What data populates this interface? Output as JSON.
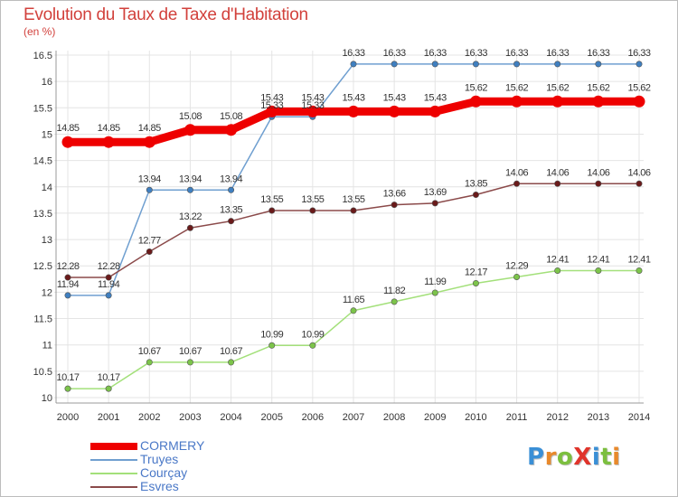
{
  "header": {
    "title": "Evolution du Taux de Taxe d'Habitation",
    "subtitle": "(en %)"
  },
  "logo": {
    "text": "ProXiti",
    "letters": [
      "P",
      "r",
      "o",
      "X",
      "i",
      "t",
      "i"
    ],
    "colors": [
      "#3a8fd6",
      "#e8892b",
      "#7cbf3f",
      "#e0342b",
      "#3a8fd6",
      "#7cbf3f",
      "#e8892b"
    ]
  },
  "chart_data": {
    "type": "line",
    "title": "Evolution du Taux de Taxe d'Habitation",
    "subtitle": "(en %)",
    "xlabel": "",
    "ylabel": "",
    "x": [
      "2000",
      "2001",
      "2002",
      "2003",
      "2004",
      "2005",
      "2006",
      "2007",
      "2008",
      "2009",
      "2010",
      "2011",
      "2012",
      "2013",
      "2014"
    ],
    "ylim": [
      10,
      16.5
    ],
    "yticks": [
      "10",
      "10.5",
      "11",
      "11.5",
      "12",
      "12.5",
      "13",
      "13.5",
      "14",
      "14.5",
      "15",
      "15.5",
      "16",
      "16.5"
    ],
    "grid": true,
    "legend_position": "bottom-left",
    "series": [
      {
        "name": "CORMERY",
        "color": "#ee0000",
        "thick": true,
        "values": [
          14.85,
          14.85,
          14.85,
          15.08,
          15.08,
          15.43,
          15.43,
          15.43,
          15.43,
          15.43,
          15.62,
          15.62,
          15.62,
          15.62,
          15.62
        ],
        "labels": [
          "14.85",
          "14.85",
          "14.85",
          "15.08",
          "15.08",
          "15.43",
          "15.43",
          "15.43",
          "15.43",
          "15.43",
          "15.62",
          "15.62",
          "15.62",
          "15.62",
          "15.62"
        ]
      },
      {
        "name": "Truyes",
        "color": "#6f9fd0",
        "marker": "#3f7fc0",
        "values": [
          11.94,
          11.94,
          13.94,
          13.94,
          13.94,
          15.33,
          15.33,
          16.33,
          16.33,
          16.33,
          16.33,
          16.33,
          16.33,
          16.33,
          16.33
        ],
        "labels": [
          "11.94",
          "11.94",
          "13.94",
          "13.94",
          "13.94",
          "15.33",
          "15.33",
          "16.33",
          "16.33",
          "16.33",
          "16.33",
          "16.33",
          "16.33",
          "16.33",
          "16.33"
        ]
      },
      {
        "name": "Courçay",
        "color": "#a3e07a",
        "marker": "#7cc44a",
        "values": [
          10.17,
          10.17,
          10.67,
          10.67,
          10.67,
          10.99,
          10.99,
          11.65,
          11.82,
          11.99,
          12.17,
          12.29,
          12.41,
          12.41,
          12.41
        ],
        "labels": [
          "10.17",
          "10.17",
          "10.67",
          "10.67",
          "10.67",
          "10.99",
          "10.99",
          "11.65",
          "11.82",
          "11.99",
          "12.17",
          "12.29",
          "12.41",
          "12.41",
          "12.41"
        ]
      },
      {
        "name": "Esvres",
        "color": "#8b4a4a",
        "marker": "#6a1a1a",
        "values": [
          12.28,
          12.28,
          12.77,
          13.22,
          13.35,
          13.55,
          13.55,
          13.55,
          13.66,
          13.69,
          13.85,
          14.06,
          14.06,
          14.06,
          14.06
        ],
        "labels": [
          "12.28",
          "12.28",
          "12.77",
          "13.22",
          "13.35",
          "13.55",
          "13.55",
          "13.55",
          "13.66",
          "13.69",
          "13.85",
          "14.06",
          "14.06",
          "14.06",
          "14.06"
        ]
      }
    ]
  }
}
